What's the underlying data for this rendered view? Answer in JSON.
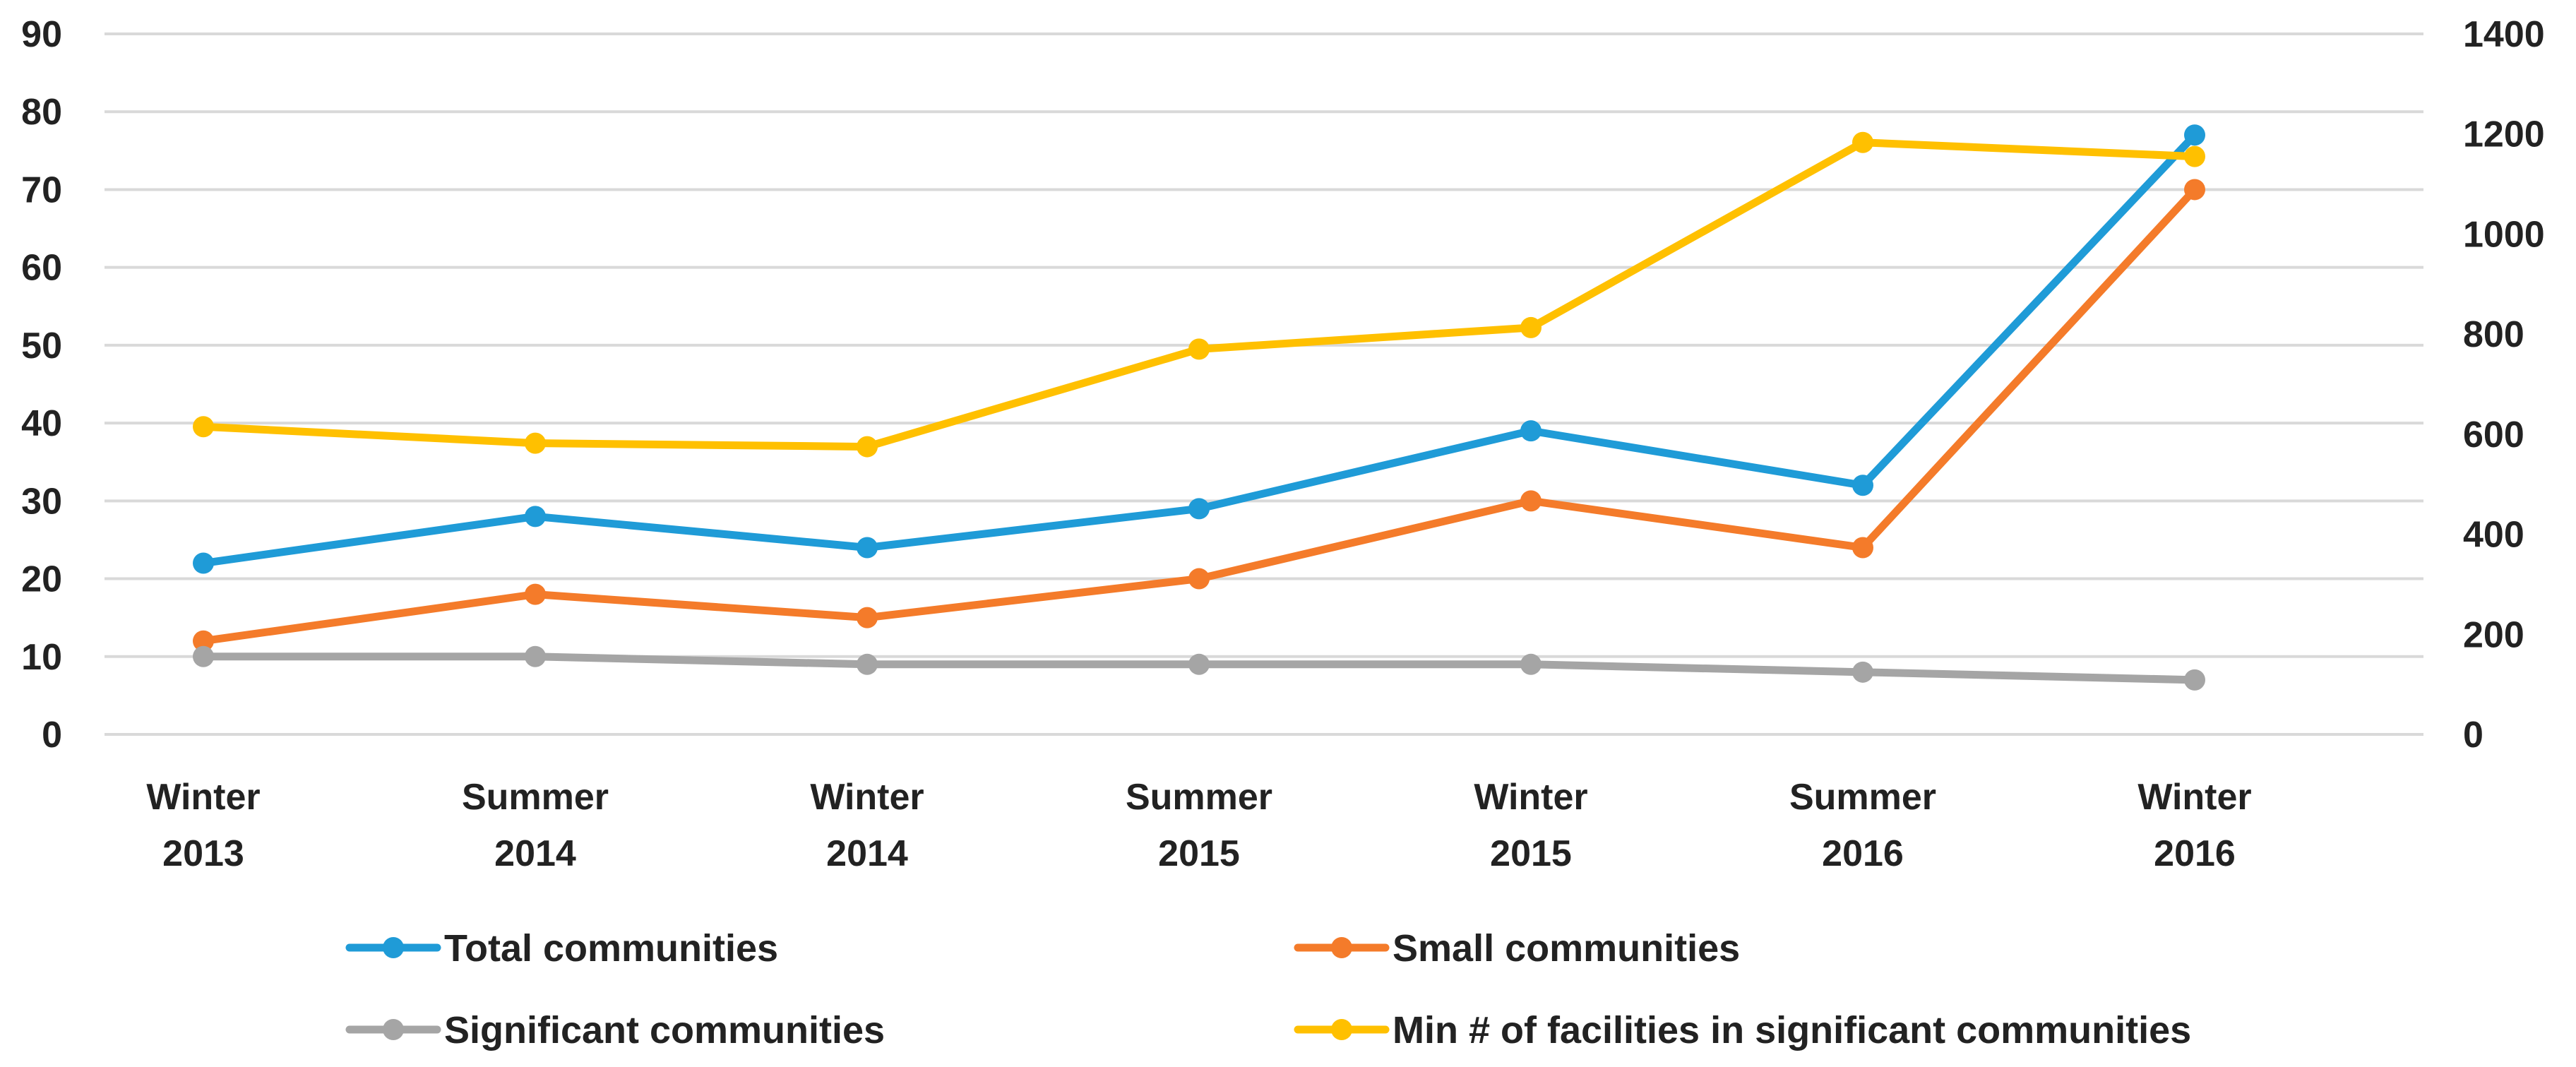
{
  "chart_data": {
    "type": "line",
    "title": "",
    "categories": [
      [
        "Winter",
        "2013"
      ],
      [
        "Summer",
        "2014"
      ],
      [
        "Winter",
        "2014"
      ],
      [
        "Summer",
        "2015"
      ],
      [
        "Winter",
        "2015"
      ],
      [
        "Summer",
        "2016"
      ],
      [
        "Winter",
        "2016"
      ]
    ],
    "y_left": {
      "min": 0,
      "max": 90,
      "step": 10,
      "ticks": [
        "0",
        "10",
        "20",
        "30",
        "40",
        "50",
        "60",
        "70",
        "80",
        "90"
      ]
    },
    "y_right": {
      "min": 0,
      "max": 1400,
      "step": 200,
      "ticks": [
        "0",
        "200",
        "400",
        "600",
        "800",
        "1000",
        "1200",
        "1400"
      ]
    },
    "grid": true,
    "legend_position": "bottom",
    "series": [
      {
        "name": "Total communities",
        "axis": "left",
        "color": "#1f9bd7",
        "values": [
          22,
          28,
          24,
          29,
          39,
          32,
          77
        ]
      },
      {
        "name": "Small communities",
        "axis": "left",
        "color": "#f47b2a",
        "values": [
          12,
          18,
          15,
          20,
          30,
          24,
          70
        ]
      },
      {
        "name": "Significant communities",
        "axis": "left",
        "color": "#a5a5a5",
        "values": [
          10,
          10,
          9,
          9,
          9,
          8,
          7
        ]
      },
      {
        "name": "Min # of facilities in significant communities",
        "axis": "right",
        "color": "#ffc000",
        "values": [
          615,
          582,
          575,
          770,
          813,
          1183,
          1155
        ]
      }
    ]
  }
}
